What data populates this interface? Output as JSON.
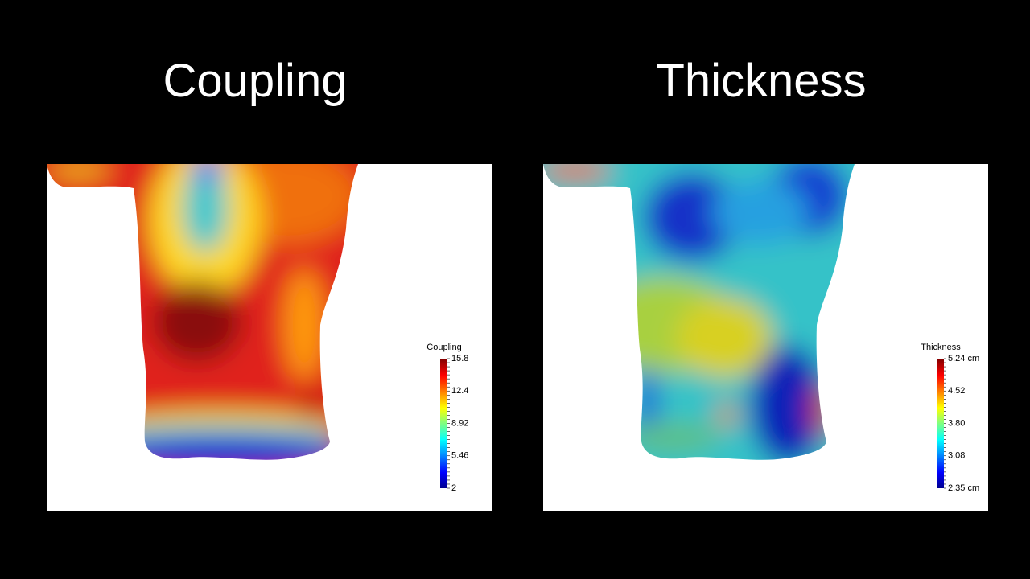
{
  "panels": [
    {
      "title": "Coupling",
      "colorbar": {
        "title": "Coupling",
        "ticks": [
          "15.8",
          "12.4",
          "8.92",
          "5.46",
          "2"
        ]
      }
    },
    {
      "title": "Thickness",
      "colorbar": {
        "title": "Thickness",
        "ticks": [
          "5.24 cm",
          "4.52",
          "3.80",
          "3.08",
          "2.35 cm"
        ]
      }
    }
  ]
}
